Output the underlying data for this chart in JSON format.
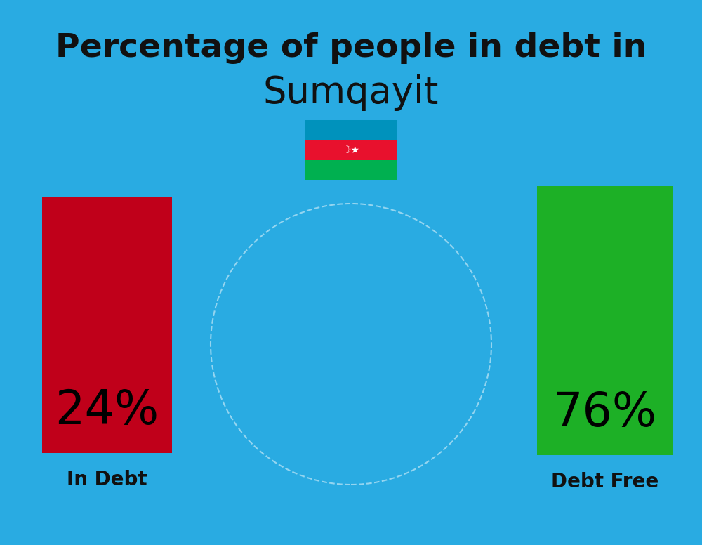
{
  "title_line1": "Percentage of people in debt in",
  "title_line2": "Sumqayit",
  "background_color": "#29ABE2",
  "in_debt_pct": 24,
  "debt_free_pct": 76,
  "in_debt_color": "#C0001A",
  "debt_free_color": "#1DB026",
  "in_debt_label": "In Debt",
  "debt_free_label": "Debt Free",
  "title_fontsize": 34,
  "subtitle_fontsize": 38,
  "bar_label_fontsize": 48,
  "axis_label_fontsize": 20,
  "title_color": "#111111",
  "label_color": "#111111",
  "flag_blue": "#0092BC",
  "flag_red": "#E8112D",
  "flag_green": "#00B050"
}
